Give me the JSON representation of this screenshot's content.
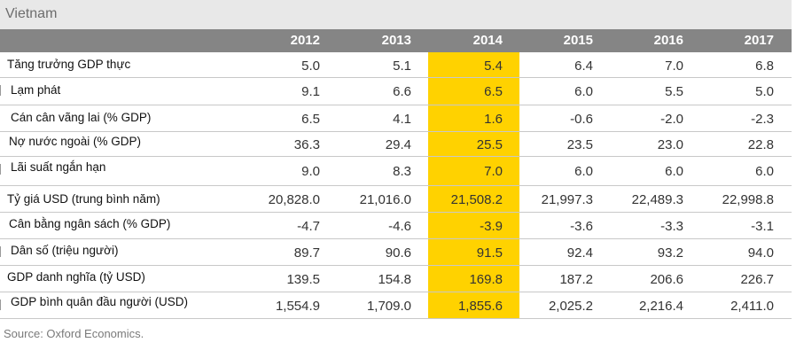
{
  "table_title": "Vietnam",
  "source": "Source: Oxford Economics.",
  "highlight_color": "#ffd200",
  "header_color": "#858585",
  "chart_data": {
    "type": "table",
    "title": "Vietnam",
    "columns": [
      "2012",
      "2013",
      "2014",
      "2015",
      "2016",
      "2017"
    ],
    "highlighted_column": "2014",
    "rows": [
      {
        "label": "Tăng trưởng GDP thực",
        "values": [
          "5.0",
          "5.1",
          "5.4",
          "6.4",
          "7.0",
          "6.8"
        ]
      },
      {
        "label": "Lạm phát",
        "values": [
          "9.1",
          "6.6",
          "6.5",
          "6.0",
          "5.5",
          "5.0"
        ]
      },
      {
        "label": "Cán cân vãng lai (% GDP)",
        "values": [
          "6.5",
          "4.1",
          "1.6",
          "-0.6",
          "-2.0",
          "-2.3"
        ]
      },
      {
        "label": "Nợ nước ngoài (% GDP)",
        "values": [
          "36.3",
          "29.4",
          "25.5",
          "23.5",
          "23.0",
          "22.8"
        ]
      },
      {
        "label": "Lãi suất ngắn hạn",
        "values": [
          "9.0",
          "8.3",
          "7.0",
          "6.0",
          "6.0",
          "6.0"
        ]
      },
      {
        "label": "Tỷ giá USD (trung bình năm)",
        "values": [
          "20,828.0",
          "21,016.0",
          "21,508.2",
          "21,997.3",
          "22,489.3",
          "22,998.8"
        ]
      },
      {
        "label": "Cân bằng ngân sách (% GDP)",
        "values": [
          "-4.7",
          "-4.6",
          "-3.9",
          "-3.6",
          "-3.3",
          "-3.1"
        ]
      },
      {
        "label": "Dân số (triệu người)",
        "values": [
          "89.7",
          "90.6",
          "91.5",
          "92.4",
          "93.2",
          "94.0"
        ]
      },
      {
        "label": "GDP danh nghĩa (tỷ USD)",
        "values": [
          "139.5",
          "154.8",
          "169.8",
          "187.2",
          "206.6",
          "226.7"
        ]
      },
      {
        "label": "GDP bình quân đầu người (USD)",
        "values": [
          "1,554.9",
          "1,709.0",
          "1,855.6",
          "2,025.2",
          "2,216.4",
          "2,411.0"
        ]
      }
    ]
  }
}
